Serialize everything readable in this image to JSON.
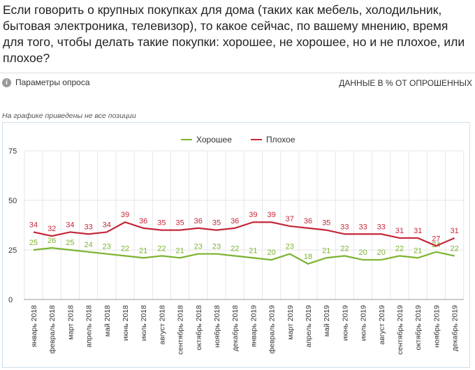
{
  "header": {
    "title": "Если говорить о крупных покупках для дома (таких как мебель, холодильник, бытовая электроника, телевизор), то какое сейчас, по вашему мнению, время для того, чтобы делать такие покупки: хорошее, не хорошее, но и не плохое, или плохое?",
    "params_label": "Параметры опроса",
    "info_icon": "i",
    "units_label": "ДАННЫЕ В % ОТ ОПРОШЕННЫХ",
    "note": "На графике приведены не все позиции"
  },
  "chart_data": {
    "type": "line",
    "title": "",
    "xlabel": "",
    "ylabel": "",
    "ylim": [
      0,
      75
    ],
    "yticks": [
      0,
      25,
      50,
      75
    ],
    "grid": true,
    "legend_position": "top-center",
    "categories": [
      "январь 2018",
      "февраль 2018",
      "март 2018",
      "апрель 2018",
      "май 2018",
      "июнь 2018",
      "июль 2018",
      "август 2018",
      "сентябрь 2018",
      "октябрь 2018",
      "ноябрь 2018",
      "декабрь 2018",
      "январь 2019",
      "февраль 2019",
      "март 2019",
      "апрель 2019",
      "май 2019",
      "июнь 2019",
      "июль 2019",
      "август 2019",
      "сентябрь 2019",
      "октябрь 2019",
      "ноябрь 2019",
      "декабрь 2019"
    ],
    "series": [
      {
        "name": "Хорошее",
        "color": "#7cb32f",
        "values": [
          25,
          26,
          25,
          24,
          23,
          22,
          21,
          22,
          21,
          23,
          23,
          22,
          21,
          20,
          23,
          18,
          21,
          22,
          20,
          20,
          22,
          21,
          24,
          22
        ]
      },
      {
        "name": "Плохое",
        "color": "#c4283a",
        "values": [
          34,
          32,
          34,
          33,
          34,
          39,
          36,
          35,
          35,
          36,
          35,
          36,
          39,
          39,
          37,
          36,
          35,
          33,
          33,
          33,
          31,
          31,
          27,
          31
        ]
      }
    ]
  }
}
